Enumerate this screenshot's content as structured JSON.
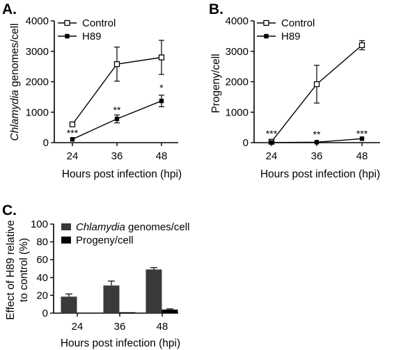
{
  "chart_data": [
    {
      "panel": "A.",
      "type": "line",
      "xlabel": "Hours post infection (hpi)",
      "ylabel_italic": "Chlamydia",
      "ylabel_rest": " genomes/cell",
      "x": [
        24,
        36,
        48
      ],
      "x_tick_labels": [
        "24",
        "36",
        "48"
      ],
      "ylim": [
        0,
        4000
      ],
      "y_ticks": [
        0,
        1000,
        2000,
        3000,
        4000
      ],
      "y_tick_labels": [
        "0",
        "1000",
        "2000",
        "3000",
        "4000"
      ],
      "legend_position": "top-left",
      "series": [
        {
          "name": "Control",
          "marker": "open-square",
          "values": [
            600,
            2580,
            2800
          ],
          "errors": [
            70,
            560,
            560
          ]
        },
        {
          "name": "H89",
          "marker": "filled-square",
          "values": [
            110,
            780,
            1370
          ],
          "errors": [
            20,
            130,
            190
          ]
        }
      ],
      "annotations": [
        "***",
        "**",
        "*"
      ]
    },
    {
      "panel": "B.",
      "type": "line",
      "xlabel": "Hours post infection (hpi)",
      "ylabel": "Progeny/cell",
      "x": [
        24,
        36,
        48
      ],
      "x_tick_labels": [
        "24",
        "36",
        "48"
      ],
      "ylim": [
        0,
        4000
      ],
      "y_ticks": [
        0,
        1000,
        2000,
        3000,
        4000
      ],
      "y_tick_labels": [
        "0",
        "1000",
        "2000",
        "3000",
        "4000"
      ],
      "legend_position": "top-left",
      "series": [
        {
          "name": "Control",
          "marker": "open-square",
          "values": [
            30,
            1920,
            3200
          ],
          "errors": [
            15,
            620,
            150
          ]
        },
        {
          "name": "H89",
          "marker": "filled-square",
          "values": [
            5,
            15,
            130
          ],
          "errors": [
            3,
            5,
            20
          ]
        }
      ],
      "annotations": [
        "***",
        "**",
        "***"
      ]
    },
    {
      "panel": "C.",
      "type": "bar",
      "xlabel": "Hours post infection (hpi)",
      "ylabel_line1": "Effect of H89 relative",
      "ylabel_line2": "to control (%)",
      "categories": [
        "24",
        "36",
        "48"
      ],
      "ylim": [
        0,
        100
      ],
      "y_ticks": [
        0,
        20,
        40,
        60,
        80,
        100
      ],
      "y_tick_labels": [
        "0",
        "20",
        "40",
        "60",
        "80",
        "100"
      ],
      "legend_position": "top-right",
      "series": [
        {
          "name_italic": "Chlamydia",
          "name_rest": " genomes/cell",
          "color": "#3a3a3a",
          "values": [
            18.5,
            31,
            49
          ],
          "errors": [
            3,
            5,
            2
          ]
        },
        {
          "name": "Progeny/cell",
          "color": "#000000",
          "values": [
            0.2,
            1,
            4
          ],
          "errors": [
            0.2,
            0.3,
            0.8
          ]
        }
      ]
    }
  ]
}
